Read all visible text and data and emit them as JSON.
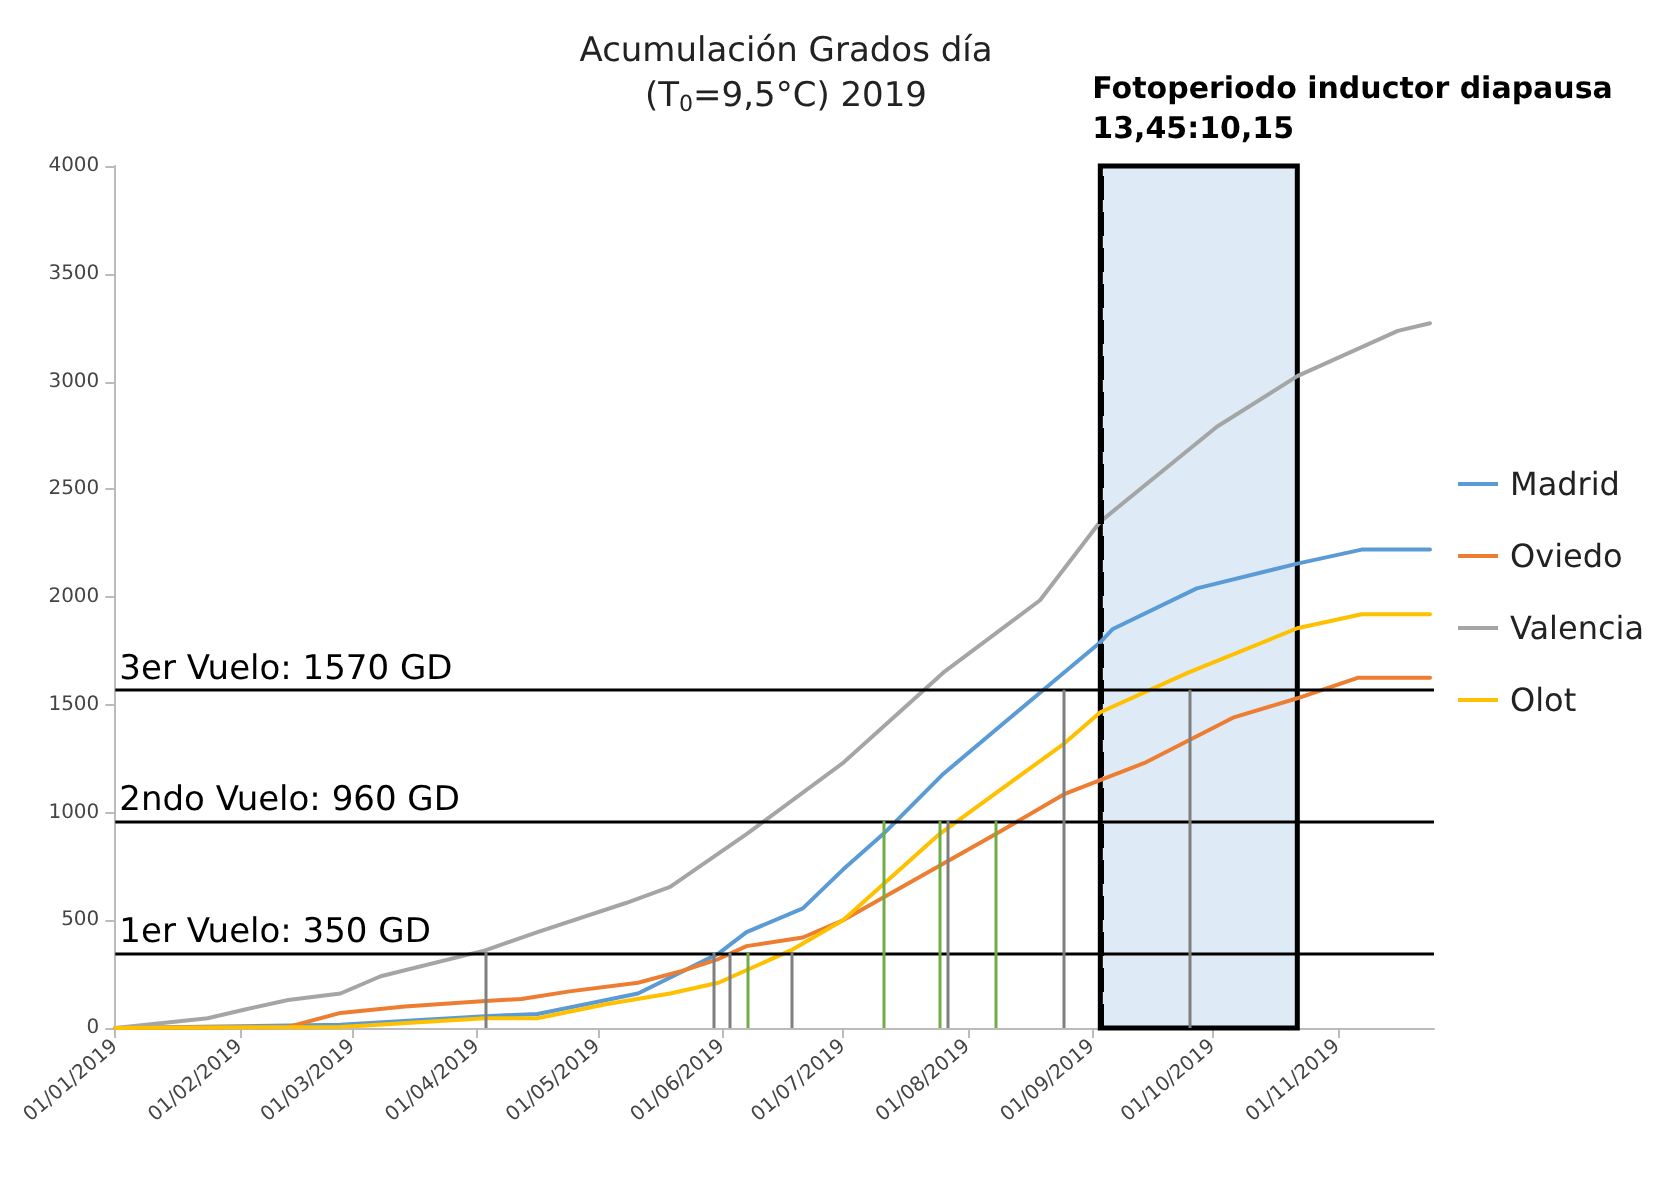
{
  "chart_data": {
    "type": "line",
    "title": "Acumulación Grados día",
    "subtitle": "(T$_{0}$=9,5°C) 2019",
    "xlim": [
      "2019-01-01",
      "2019-11-25"
    ],
    "xticks": [
      {
        "value": "2019-01-01",
        "label": "01/01/2019"
      },
      {
        "value": "2019-02-01",
        "label": "01/02/2019"
      },
      {
        "value": "2019-03-01",
        "label": "01/03/2019"
      },
      {
        "value": "2019-04-01",
        "label": "01/04/2019"
      },
      {
        "value": "2019-05-01",
        "label": "01/05/2019"
      },
      {
        "value": "2019-06-01",
        "label": "01/06/2019"
      },
      {
        "value": "2019-07-01",
        "label": "01/07/2019"
      },
      {
        "value": "2019-08-01",
        "label": "01/08/2019"
      },
      {
        "value": "2019-09-01",
        "label": "01/09/2019"
      },
      {
        "value": "2019-10-01",
        "label": "01/10/2019"
      },
      {
        "value": "2019-11-01",
        "label": "01/11/2019"
      }
    ],
    "ylim": [
      0,
      4000
    ],
    "yticks": [
      0,
      500,
      1000,
      1500,
      2000,
      2500,
      3000,
      3500,
      4000
    ],
    "series": [
      {
        "name": "Madrid",
        "color": "#5b9bd5",
        "x": [
          "2019-01-01",
          "2019-02-26",
          "2019-04-03",
          "2019-04-16",
          "2019-04-28",
          "2019-05-11",
          "2019-05-31",
          "2019-06-07",
          "2019-06-21",
          "2019-07-01",
          "2019-07-11",
          "2019-07-26",
          "2019-08-25",
          "2019-09-03",
          "2019-09-06",
          "2019-09-27",
          "2019-10-22",
          "2019-11-07",
          "2019-11-24"
        ],
        "values": [
          0,
          15,
          55,
          65,
          110,
          160,
          345,
          445,
          555,
          735,
          900,
          1180,
          1650,
          1790,
          1850,
          2040,
          2155,
          2220,
          2220
        ]
      },
      {
        "name": "Oviedo",
        "color": "#ed7d31",
        "x": [
          "2019-01-01",
          "2019-02-13",
          "2019-02-26",
          "2019-03-14",
          "2019-04-03",
          "2019-04-12",
          "2019-04-24",
          "2019-05-11",
          "2019-05-22",
          "2019-05-31",
          "2019-06-07",
          "2019-06-21",
          "2019-07-01",
          "2019-08-08",
          "2019-08-25",
          "2019-09-14",
          "2019-10-06",
          "2019-10-22",
          "2019-11-06",
          "2019-11-24"
        ],
        "values": [
          0,
          5,
          70,
          100,
          125,
          135,
          170,
          210,
          265,
          320,
          380,
          420,
          500,
          900,
          1085,
          1230,
          1440,
          1530,
          1625,
          1625
        ]
      },
      {
        "name": "Valencia",
        "color": "#a5a5a5",
        "x": [
          "2019-01-01",
          "2019-01-24",
          "2019-02-02",
          "2019-02-13",
          "2019-02-26",
          "2019-03-08",
          "2019-04-03",
          "2019-04-16",
          "2019-05-08",
          "2019-05-19",
          "2019-06-07",
          "2019-07-01",
          "2019-07-26",
          "2019-08-19",
          "2019-09-03",
          "2019-10-02",
          "2019-10-22",
          "2019-11-16",
          "2019-11-24"
        ],
        "values": [
          0,
          45,
          85,
          130,
          160,
          240,
          360,
          445,
          580,
          655,
          900,
          1230,
          1650,
          1985,
          2350,
          2790,
          3025,
          3235,
          3270
        ]
      },
      {
        "name": "Olot",
        "color": "#ffc000",
        "x": [
          "2019-01-01",
          "2019-02-26",
          "2019-04-03",
          "2019-04-16",
          "2019-05-03",
          "2019-05-19",
          "2019-05-31",
          "2019-06-18",
          "2019-07-01",
          "2019-07-25",
          "2019-08-25",
          "2019-09-03",
          "2019-09-25",
          "2019-10-22",
          "2019-11-07",
          "2019-11-24"
        ],
        "values": [
          0,
          5,
          45,
          45,
          110,
          160,
          210,
          360,
          500,
          900,
          1320,
          1465,
          1650,
          1855,
          1920,
          1920
        ]
      }
    ],
    "ref_lines": [
      {
        "axis": "y",
        "value": 350,
        "label": "1er Vuelo: 350 GD",
        "color": "#000000"
      },
      {
        "axis": "y",
        "value": 960,
        "label": "2ndo Vuelo: 960 GD",
        "color": "#000000"
      },
      {
        "axis": "y",
        "value": 1570,
        "label": "3er Vuelo: 1570 GD",
        "color": "#000000"
      },
      {
        "axis": "x",
        "value": "2019-09-03",
        "label": "Fotoperiodo inductor diapausa\n13,45:10,15",
        "color": "#000000",
        "line_style": "dashed"
      },
      {
        "axis": "x",
        "value": "2019-04-03",
        "color": "#7f7f7f"
      },
      {
        "axis": "x",
        "value": "2019-05-30",
        "color": "#7f7f7f"
      },
      {
        "axis": "x",
        "value": "2019-06-03",
        "color": "#7f7f7f"
      },
      {
        "axis": "x",
        "value": "2019-06-07",
        "color": "#70ad47"
      },
      {
        "axis": "x",
        "value": "2019-06-18",
        "color": "#7f7f7f"
      },
      {
        "axis": "x",
        "value": "2019-07-11",
        "color": "#70ad47"
      },
      {
        "axis": "x",
        "value": "2019-07-25",
        "color": "#70ad47"
      },
      {
        "axis": "x",
        "value": "2019-07-27",
        "color": "#7f7f7f"
      },
      {
        "axis": "x",
        "value": "2019-08-08",
        "color": "#70ad47"
      },
      {
        "axis": "x",
        "value": "2019-08-25",
        "color": "#7f7f7f"
      },
      {
        "axis": "x",
        "value": "2019-09-25",
        "color": "#7f7f7f"
      }
    ],
    "bands": [
      {
        "axis": "x",
        "from": "2019-09-03",
        "to": "2019-10-22",
        "color": "#deebf7"
      }
    ],
    "grid": false,
    "legend": "right",
    "marker": "none",
    "line_style": "solid"
  }
}
